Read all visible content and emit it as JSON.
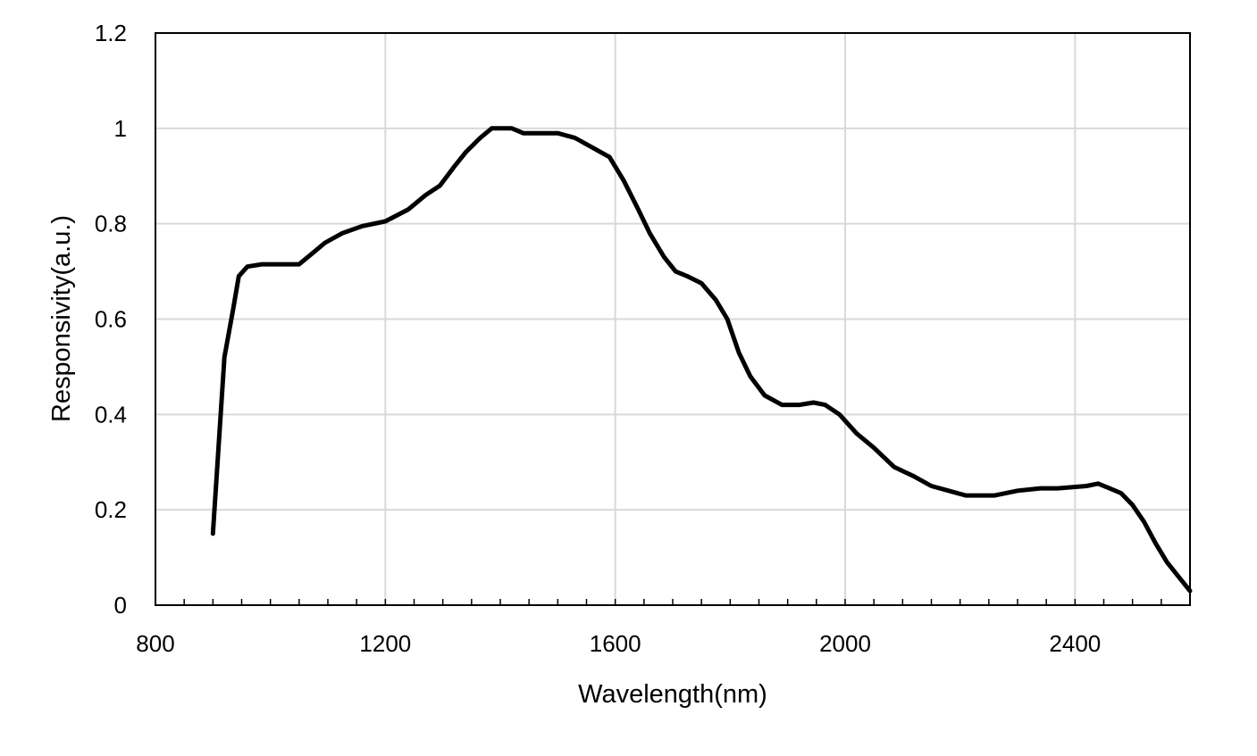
{
  "chart_data": {
    "type": "line",
    "title": "",
    "xlabel": "Wavelength(nm)",
    "ylabel": "Responsivity(a.u.)",
    "xlim": [
      800,
      2600
    ],
    "ylim": [
      0,
      1.2
    ],
    "x_ticks": [
      800,
      1200,
      1600,
      2000,
      2400
    ],
    "x_tick_labels": [
      "800",
      "1200",
      "1600",
      "2000",
      "2400"
    ],
    "y_ticks": [
      0,
      0.2,
      0.4,
      0.6,
      0.8,
      1,
      1.2
    ],
    "y_tick_labels": [
      "0",
      "0.2",
      "0.4",
      "0.6",
      "0.8",
      "1",
      "1.2"
    ],
    "grid": true,
    "series": [
      {
        "color": "#000000",
        "points": [
          [
            900,
            0.15
          ],
          [
            920,
            0.52
          ],
          [
            935,
            0.62
          ],
          [
            945,
            0.69
          ],
          [
            960,
            0.71
          ],
          [
            985,
            0.715
          ],
          [
            1020,
            0.715
          ],
          [
            1050,
            0.715
          ],
          [
            1070,
            0.735
          ],
          [
            1095,
            0.76
          ],
          [
            1125,
            0.78
          ],
          [
            1160,
            0.795
          ],
          [
            1200,
            0.805
          ],
          [
            1240,
            0.83
          ],
          [
            1270,
            0.86
          ],
          [
            1295,
            0.88
          ],
          [
            1320,
            0.92
          ],
          [
            1340,
            0.95
          ],
          [
            1365,
            0.98
          ],
          [
            1385,
            1.0
          ],
          [
            1420,
            1.0
          ],
          [
            1440,
            0.99
          ],
          [
            1500,
            0.99
          ],
          [
            1530,
            0.98
          ],
          [
            1560,
            0.96
          ],
          [
            1590,
            0.94
          ],
          [
            1615,
            0.89
          ],
          [
            1640,
            0.83
          ],
          [
            1660,
            0.78
          ],
          [
            1685,
            0.73
          ],
          [
            1705,
            0.7
          ],
          [
            1725,
            0.69
          ],
          [
            1750,
            0.675
          ],
          [
            1775,
            0.64
          ],
          [
            1795,
            0.6
          ],
          [
            1815,
            0.53
          ],
          [
            1835,
            0.48
          ],
          [
            1860,
            0.44
          ],
          [
            1890,
            0.42
          ],
          [
            1920,
            0.42
          ],
          [
            1945,
            0.425
          ],
          [
            1965,
            0.42
          ],
          [
            1990,
            0.4
          ],
          [
            2020,
            0.36
          ],
          [
            2050,
            0.33
          ],
          [
            2085,
            0.29
          ],
          [
            2120,
            0.27
          ],
          [
            2150,
            0.25
          ],
          [
            2180,
            0.24
          ],
          [
            2210,
            0.23
          ],
          [
            2260,
            0.23
          ],
          [
            2300,
            0.24
          ],
          [
            2340,
            0.245
          ],
          [
            2370,
            0.245
          ],
          [
            2420,
            0.25
          ],
          [
            2440,
            0.255
          ],
          [
            2460,
            0.245
          ],
          [
            2480,
            0.235
          ],
          [
            2500,
            0.21
          ],
          [
            2520,
            0.175
          ],
          [
            2540,
            0.13
          ],
          [
            2560,
            0.09
          ],
          [
            2580,
            0.06
          ],
          [
            2600,
            0.03
          ]
        ]
      }
    ]
  }
}
